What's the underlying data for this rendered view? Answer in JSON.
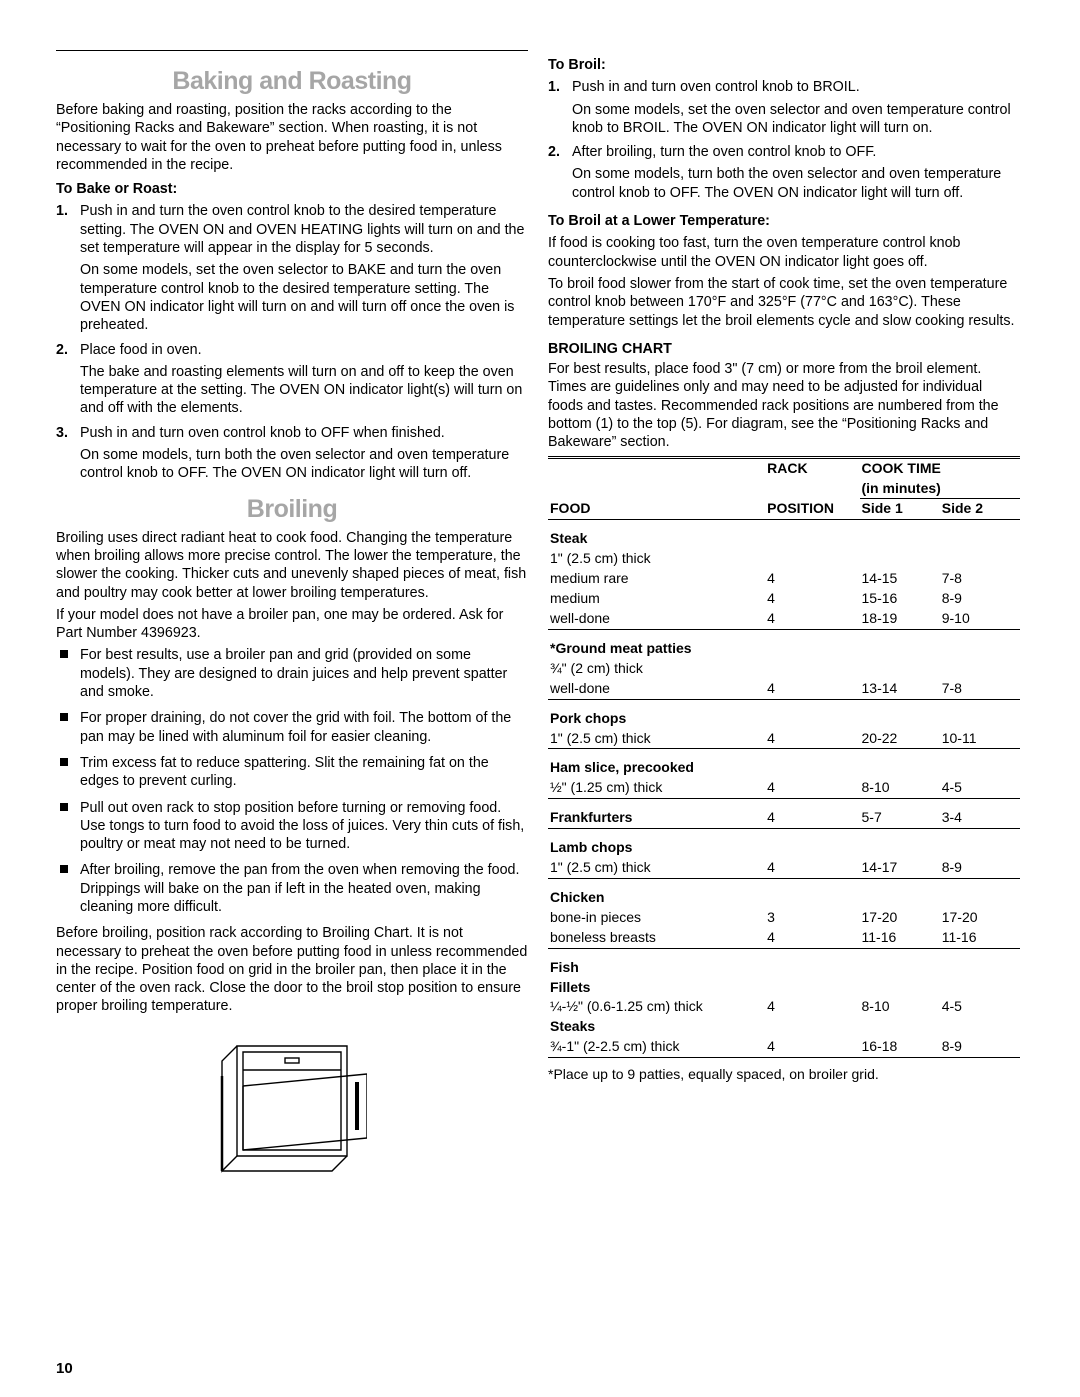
{
  "page_number": "10",
  "left": {
    "title1": "Baking and Roasting",
    "intro1": "Before baking and roasting, position the racks according to the “Positioning Racks and Bakeware” section. When roasting, it is not necessary to wait for the oven to preheat before putting food in, unless recommended in the recipe.",
    "sub1": "To Bake or Roast:",
    "steps1": [
      {
        "n": "1.",
        "a": "Push in and turn the oven control knob to the desired temperature setting. The OVEN ON and OVEN HEATING lights will turn on and the set temperature will appear in the display for 5 seconds.",
        "b": "On some models, set the oven selector to BAKE and turn the oven temperature control knob to the desired temperature setting. The OVEN ON indicator light will turn on and will turn off once the oven is preheated."
      },
      {
        "n": "2.",
        "a": "Place food in oven.",
        "b": "The bake and roasting elements will turn on and off to keep the oven temperature at the setting. The OVEN ON indicator light(s) will turn on and off with the elements."
      },
      {
        "n": "3.",
        "a": "Push in and turn oven control knob to OFF when finished.",
        "b": "On some models, turn both the oven selector and oven temperature control knob to OFF. The OVEN ON indicator light will turn off."
      }
    ],
    "title2": "Broiling",
    "intro2a": "Broiling uses direct radiant heat to cook food. Changing the temperature when broiling allows more precise control. The lower the temperature, the slower the cooking. Thicker cuts and unevenly shaped pieces of meat, fish and poultry may cook better at lower broiling temperatures.",
    "intro2b": "If your model does not have a broiler pan, one may be ordered. Ask for Part Number 4396923.",
    "bullets": [
      "For best results, use a broiler pan and grid (provided on some models). They are designed to drain juices and help prevent spatter and smoke.",
      "For proper draining, do not cover the grid with foil. The bottom of the pan may be lined with aluminum foil for easier cleaning.",
      "Trim excess fat to reduce spattering. Slit the remaining fat on the edges to prevent curling.",
      "Pull out oven rack to stop position before turning or removing food. Use tongs to turn food to avoid the loss of juices. Very thin cuts of fish, poultry or meat may not need to be turned.",
      "After broiling, remove the pan from the oven when removing the food. Drippings will bake on the pan if left in the heated oven, making cleaning more difficult."
    ],
    "outro2": "Before broiling, position rack according to Broiling Chart. It is not necessary to preheat the oven before putting food in unless recommended in the recipe. Position food on grid in the broiler pan, then place it in the center of the oven rack. Close the door to the broil stop position to ensure proper broiling temperature."
  },
  "right": {
    "subA": "To Broil:",
    "stepsA": [
      {
        "n": "1.",
        "a": "Push in and turn oven control knob to BROIL.",
        "b": "On some models, set the oven selector and oven temperature control knob to BROIL. The OVEN ON indicator light will turn on."
      },
      {
        "n": "2.",
        "a": "After broiling, turn the oven control knob to OFF.",
        "b": "On some models, turn both the oven selector and oven temperature control knob to OFF. The OVEN ON indicator light will turn off."
      }
    ],
    "subB": "To Broil at a Lower Temperature:",
    "pB1": "If food is cooking too fast, turn the oven temperature control knob counterclockwise until the OVEN ON indicator light goes off.",
    "pB2": "To broil food slower from the start of cook time, set the oven temperature control knob between 170°F and 325°F (77°C and 163°C). These temperature settings let the broil elements cycle and slow cooking results.",
    "chartTitle": "BROILING CHART",
    "chartIntro": "For best results, place food 3\" (7 cm) or more from the broil element. Times are guidelines only and may need to be adjusted for individual foods and tastes. Recommended rack positions are numbered from the bottom (1) to the top (5). For diagram, see the “Positioning Racks and Bakeware” section.",
    "th_food": "FOOD",
    "th_rack1": "RACK",
    "th_rack2": "POSITION",
    "th_cook1": "COOK TIME",
    "th_cook2": "(in minutes)",
    "th_s1": "Side 1",
    "th_s2": "Side 2",
    "rows": [
      {
        "h": "Steak",
        "sub": "1\" (2.5 cm) thick",
        "lines": [
          {
            "f": "medium rare",
            "r": "4",
            "s1": "14-15",
            "s2": "7-8"
          },
          {
            "f": "medium",
            "r": "4",
            "s1": "15-16",
            "s2": "8-9"
          },
          {
            "f": "well-done",
            "r": "4",
            "s1": "18-19",
            "s2": "9-10"
          }
        ]
      },
      {
        "h": "*Ground meat patties",
        "sub": "¾\" (2 cm) thick",
        "lines": [
          {
            "f": "well-done",
            "r": "4",
            "s1": "13-14",
            "s2": "7-8"
          }
        ]
      },
      {
        "h": "Pork chops",
        "sub": "",
        "lines": [
          {
            "f": "1\" (2.5 cm) thick",
            "r": "4",
            "s1": "20-22",
            "s2": "10-11"
          }
        ]
      },
      {
        "h": "Ham slice, precooked",
        "sub": "",
        "lines": [
          {
            "f": "½\" (1.25 cm) thick",
            "r": "4",
            "s1": "8-10",
            "s2": "4-5"
          }
        ]
      },
      {
        "h": "Frankfurters",
        "sub": "",
        "lines": [
          {
            "f": "",
            "r": "4",
            "s1": "5-7",
            "s2": "3-4"
          }
        ],
        "inline": true
      },
      {
        "h": "Lamb chops",
        "sub": "",
        "lines": [
          {
            "f": "1\" (2.5 cm) thick",
            "r": "4",
            "s1": "14-17",
            "s2": "8-9"
          }
        ]
      },
      {
        "h": "Chicken",
        "sub": "",
        "lines": [
          {
            "f": "bone-in pieces",
            "r": "3",
            "s1": "17-20",
            "s2": "17-20"
          },
          {
            "f": "boneless breasts",
            "r": "4",
            "s1": "11-16",
            "s2": "11-16"
          }
        ]
      },
      {
        "h": "Fish",
        "sub": "",
        "multi": [
          {
            "b": "Fillets"
          },
          {
            "f": "¼-½\" (0.6-1.25 cm) thick",
            "r": "4",
            "s1": "8-10",
            "s2": "4-5"
          },
          {
            "b": "Steaks"
          },
          {
            "f": "¾-1\" (2-2.5 cm) thick",
            "r": "4",
            "s1": "16-18",
            "s2": "8-9"
          }
        ]
      }
    ],
    "footnote": "*Place up to 9 patties, equally spaced, on broiler grid."
  }
}
